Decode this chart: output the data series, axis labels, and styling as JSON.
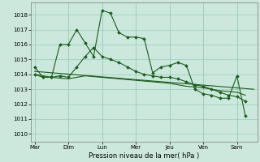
{
  "xlabel": "Pression niveau de la mer( hPa )",
  "bg_color": "#cce8dd",
  "grid_color": "#99ccbb",
  "line_color": "#1a5c1a",
  "ylim_min": 1009.5,
  "ylim_max": 1018.8,
  "yticks": [
    1010,
    1011,
    1012,
    1013,
    1014,
    1015,
    1016,
    1017,
    1018
  ],
  "day_labels": [
    "Mar",
    "Dim",
    "Lun",
    "Mer",
    "Jeu",
    "Ven",
    "Sam"
  ],
  "day_positions": [
    0,
    2,
    4,
    6,
    8,
    10,
    12
  ],
  "xlim_min": -0.2,
  "xlim_max": 13.2,
  "series1_x": [
    0,
    0.5,
    1,
    1.5,
    2,
    2.5,
    3,
    3.5,
    4,
    4.5,
    5,
    5.5,
    6,
    6.5,
    7,
    7.5,
    8,
    8.5,
    9,
    9.5,
    10,
    10.5,
    11,
    11.5,
    12,
    12.5
  ],
  "series1_y": [
    1014.5,
    1013.8,
    1013.8,
    1016.0,
    1016.0,
    1017.0,
    1016.1,
    1015.2,
    1018.3,
    1018.1,
    1016.8,
    1016.5,
    1016.5,
    1016.4,
    1014.1,
    1014.5,
    1014.6,
    1014.8,
    1014.6,
    1013.0,
    1012.7,
    1012.6,
    1012.4,
    1012.4,
    1013.9,
    1011.2
  ],
  "series2_x": [
    0,
    0.5,
    1,
    1.5,
    2,
    2.5,
    3,
    3.5,
    4,
    4.5,
    5,
    5.5,
    6,
    6.5,
    7,
    7.5,
    8,
    8.5,
    9,
    9.5,
    10,
    10.5,
    11,
    11.5,
    12,
    12.5
  ],
  "series2_y": [
    1014.0,
    1013.8,
    1013.8,
    1013.9,
    1013.8,
    1014.5,
    1015.2,
    1015.8,
    1015.2,
    1015.0,
    1014.8,
    1014.5,
    1014.2,
    1014.0,
    1013.9,
    1013.8,
    1013.8,
    1013.7,
    1013.5,
    1013.3,
    1013.2,
    1013.0,
    1012.8,
    1012.6,
    1012.5,
    1012.2
  ],
  "series3_x": [
    0,
    1,
    2,
    3,
    4,
    5,
    6,
    7,
    8,
    9,
    10,
    11,
    12,
    12.5
  ],
  "series3_y": [
    1014.0,
    1013.8,
    1013.7,
    1013.9,
    1013.8,
    1013.7,
    1013.6,
    1013.5,
    1013.4,
    1013.2,
    1013.1,
    1012.9,
    1012.8,
    1012.6
  ],
  "series4_x": [
    0,
    13
  ],
  "series4_y": [
    1014.2,
    1013.0
  ],
  "lw1": 0.8,
  "lw2": 0.8,
  "lw3": 0.8,
  "lw4": 0.8,
  "marker_size": 2.0,
  "tick_fontsize": 5.0,
  "xlabel_fontsize": 6.0
}
